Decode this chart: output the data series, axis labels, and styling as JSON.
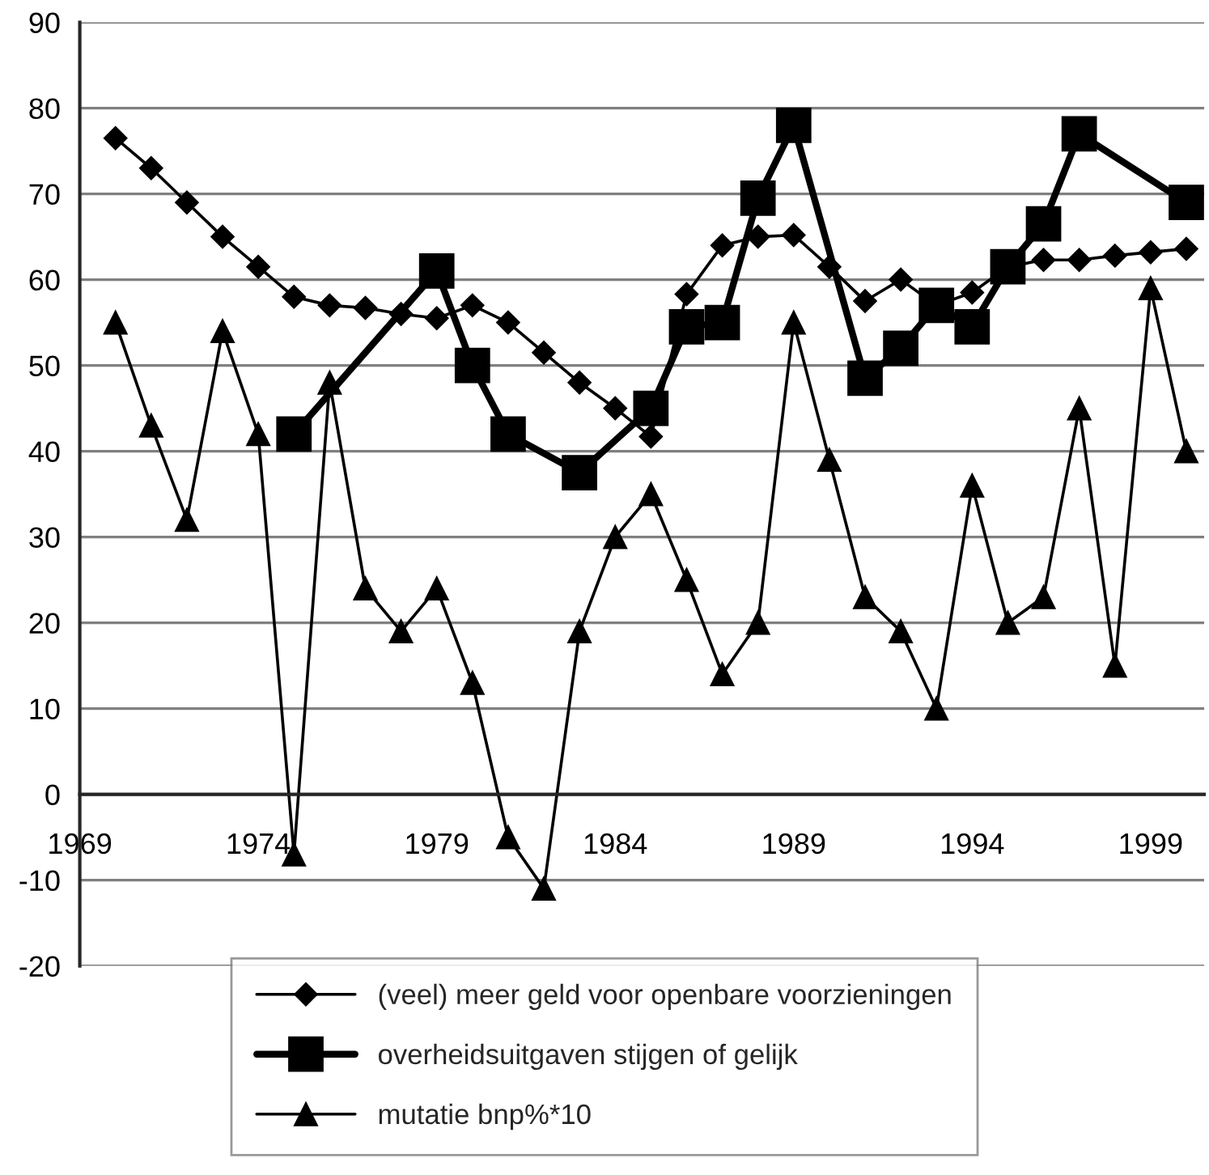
{
  "chart_data": {
    "type": "line",
    "xlim": [
      1969,
      2000.5
    ],
    "xticks": [
      1969,
      1974,
      1979,
      1984,
      1989,
      1994,
      1999
    ],
    "ylim": [
      -20,
      90
    ],
    "yticks": [
      -20,
      -10,
      0,
      10,
      20,
      30,
      40,
      50,
      60,
      70,
      80,
      90
    ],
    "grid": "y",
    "legend": "bottom",
    "series": [
      {
        "name": "(veel) meer geld voor openbare voorzieningen",
        "color": "#000000",
        "marker": "diamond",
        "x": [
          1970,
          1971,
          1972,
          1973,
          1974,
          1975,
          1976,
          1977,
          1978,
          1979,
          1980,
          1981,
          1982,
          1983,
          1984,
          1985,
          1986,
          1987,
          1988,
          1989,
          1990,
          1991,
          1992,
          1993,
          1994,
          1995,
          1996,
          1997,
          1998,
          1999,
          2000
        ],
        "values": [
          76.5,
          73,
          69,
          65,
          61.5,
          58,
          57,
          56.7,
          56,
          55.5,
          57,
          55,
          51.5,
          48,
          45,
          41.7,
          58.3,
          64,
          65,
          65.2,
          61.5,
          57.5,
          60,
          57,
          58.5,
          61.5,
          62.3,
          62.3,
          62.8,
          63.2,
          63.6
        ]
      },
      {
        "name": "overheidsuitgaven stijgen of gelijk",
        "color": "#000000",
        "marker": "square",
        "x": [
          1975,
          1979,
          1980,
          1981,
          1983,
          1985,
          1986,
          1987,
          1988,
          1989,
          1991,
          1992,
          1993,
          1994,
          1995,
          1996,
          1997,
          2000
        ],
        "values": [
          42,
          61,
          50,
          42,
          37.5,
          45,
          54.5,
          55,
          69.5,
          78,
          48.5,
          52,
          57,
          54.5,
          61.5,
          66.5,
          77,
          69
        ]
      },
      {
        "name": "mutatie bnp%*10",
        "color": "#000000",
        "marker": "triangle",
        "x": [
          1970,
          1971,
          1972,
          1973,
          1974,
          1975,
          1976,
          1977,
          1978,
          1979,
          1980,
          1981,
          1982,
          1983,
          1984,
          1985,
          1986,
          1987,
          1988,
          1989,
          1990,
          1991,
          1992,
          1993,
          1994,
          1995,
          1996,
          1997,
          1998,
          1999,
          2000
        ],
        "values": [
          55,
          43,
          32,
          54,
          42,
          -7,
          48,
          24,
          19,
          24,
          13,
          -5,
          -11,
          19,
          30,
          35,
          25,
          14,
          20,
          55,
          39,
          23,
          19,
          10,
          36,
          20,
          23,
          45,
          15,
          59,
          40
        ]
      }
    ]
  }
}
